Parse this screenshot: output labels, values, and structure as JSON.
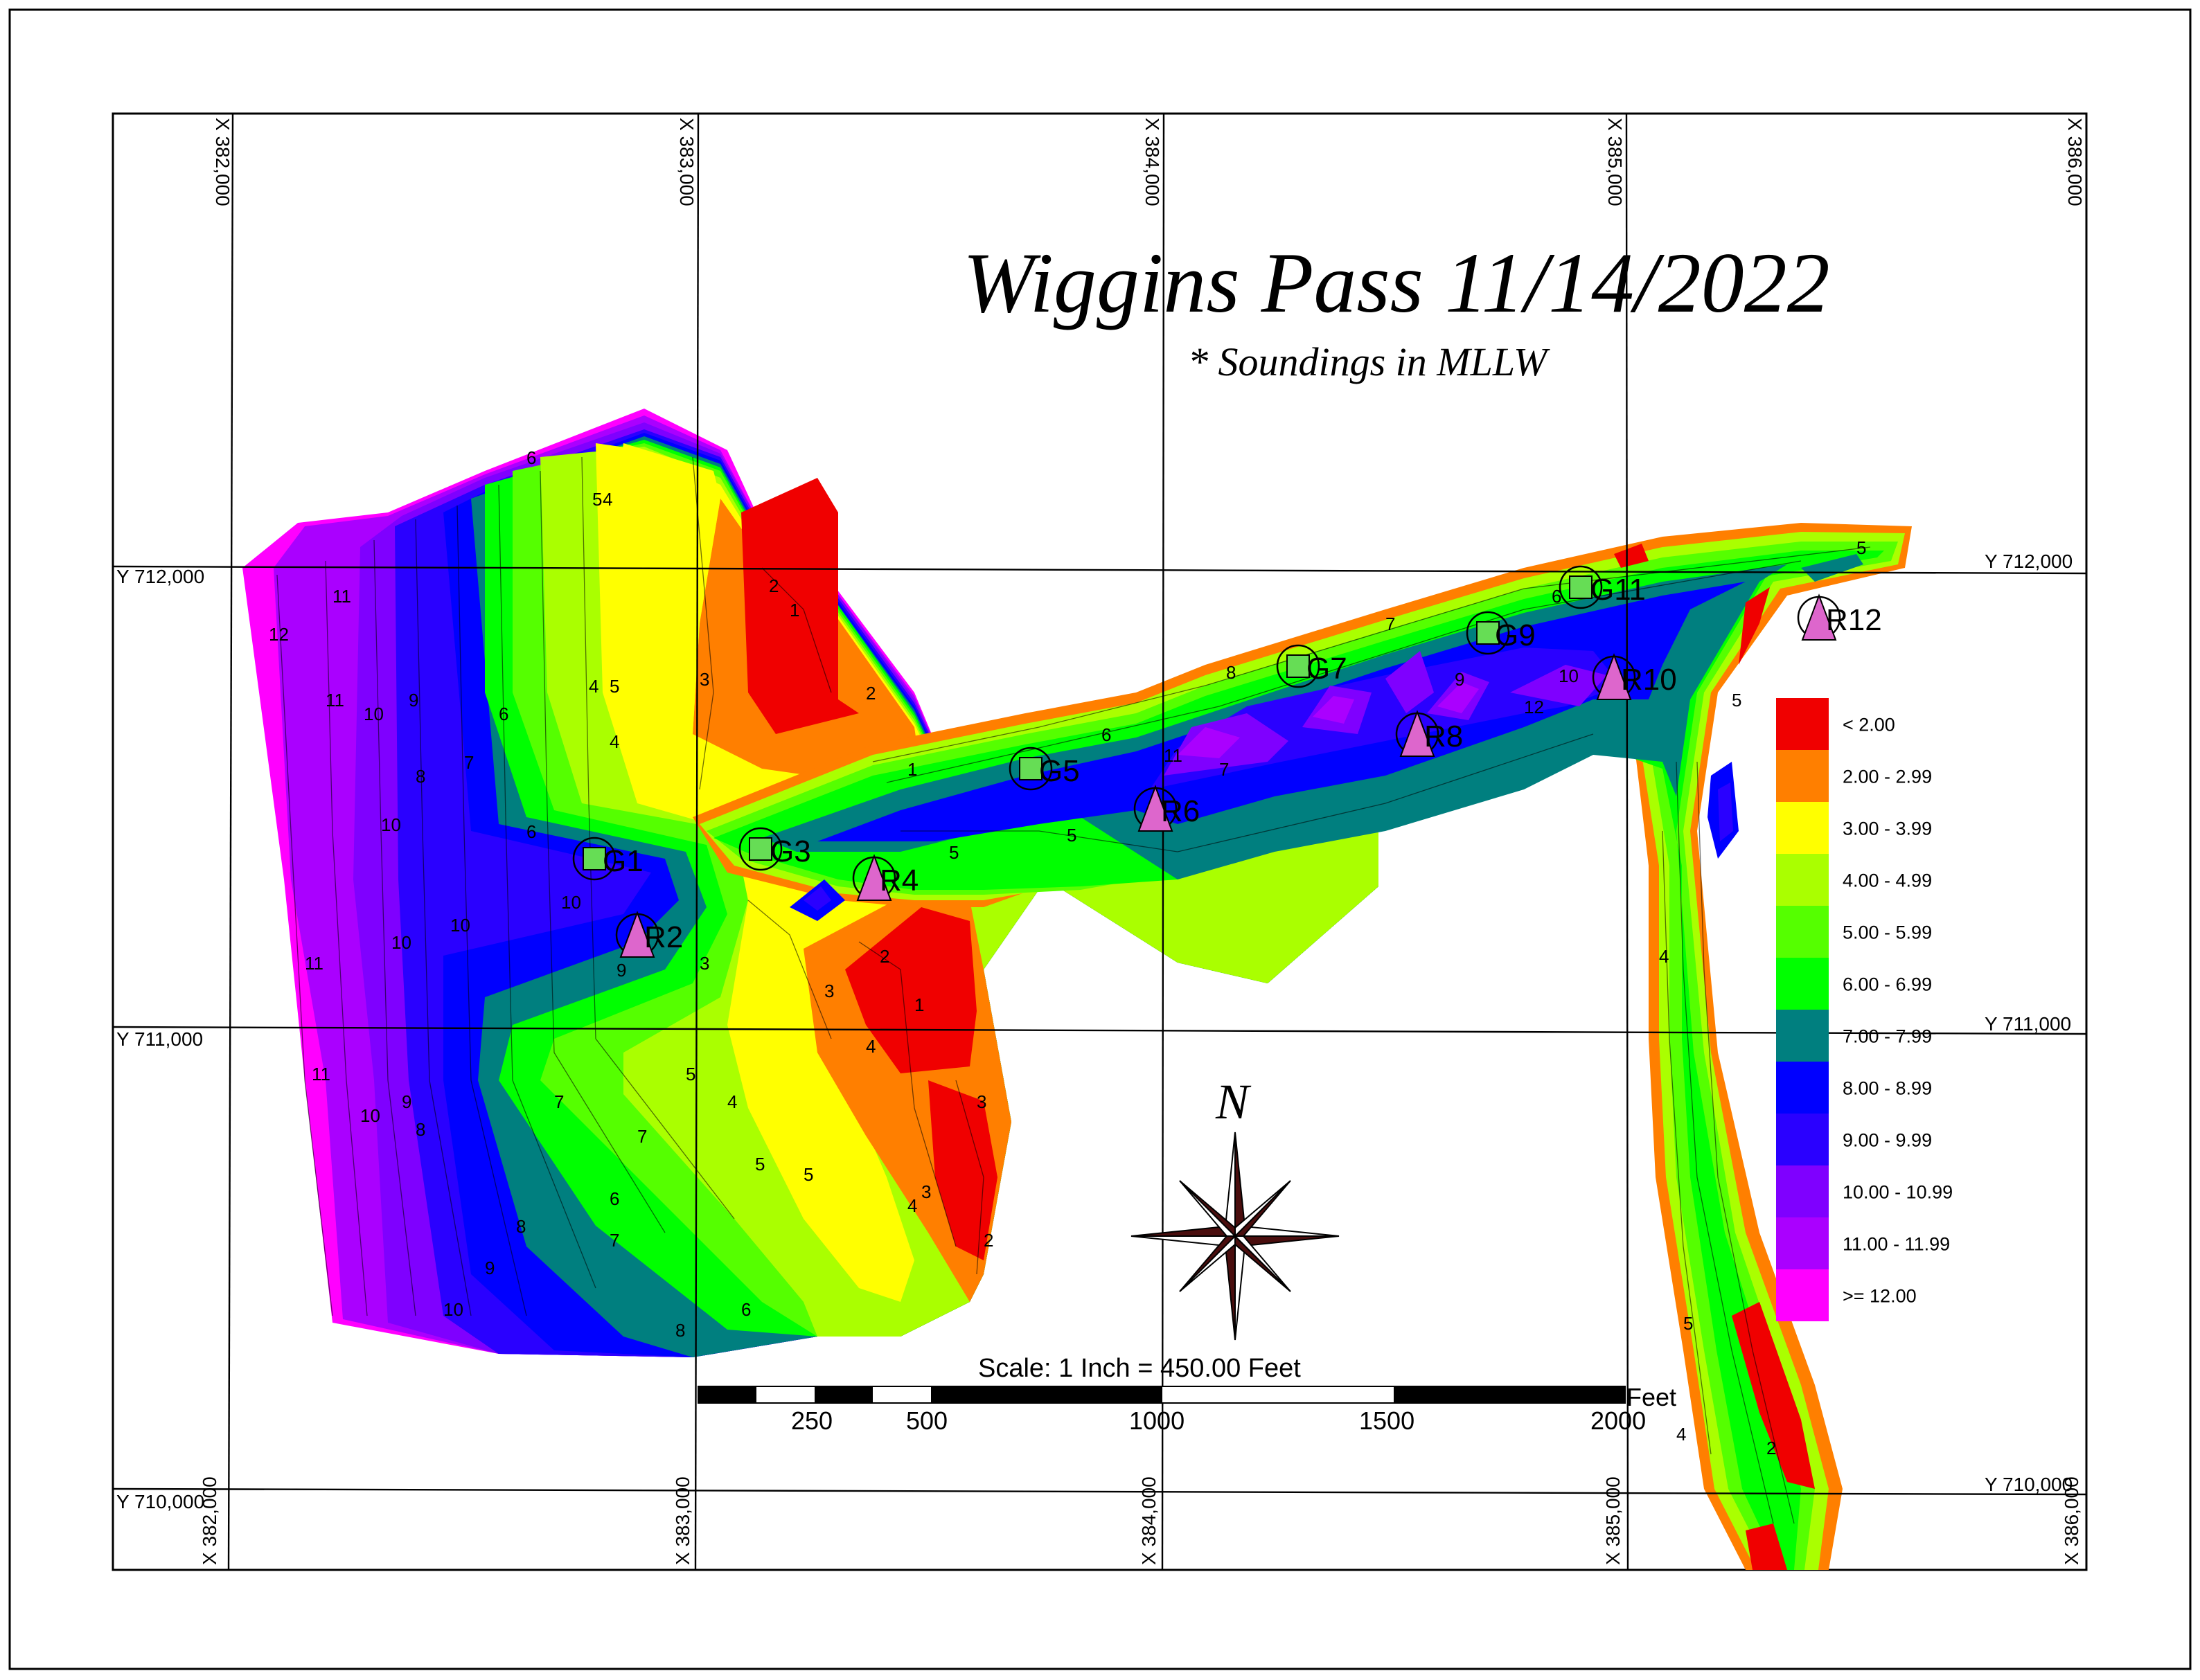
{
  "map": {
    "title": "Wiggins Pass 11/14/2022",
    "subtitle": "* Soundings in MLLW",
    "north": "N",
    "scale_caption": "Scale: 1 Inch = 450.00 Feet",
    "scale_unit": "Feet",
    "scale_ticks": [
      "250",
      "500",
      "1000",
      "1500",
      "2000"
    ],
    "x_grid": [
      "X 382,000",
      "X 383,000",
      "X 384,000",
      "X 385,000",
      "X 386,000"
    ],
    "y_grid": [
      "Y 712,000",
      "Y 711,000",
      "Y 710,000"
    ]
  },
  "legend": [
    {
      "label": "< 2.00",
      "color": "#f00000"
    },
    {
      "label": "2.00 - 2.99",
      "color": "#ff7f00"
    },
    {
      "label": "3.00 - 3.99",
      "color": "#ffff00"
    },
    {
      "label": "4.00 - 4.99",
      "color": "#aaff00"
    },
    {
      "label": "5.00 - 5.99",
      "color": "#55ff00"
    },
    {
      "label": "6.00 - 6.99",
      "color": "#00ff00"
    },
    {
      "label": "7.00 - 7.99",
      "color": "#007f7f"
    },
    {
      "label": "8.00 - 8.99",
      "color": "#0000ff"
    },
    {
      "label": "9.00 - 9.99",
      "color": "#2a00ff"
    },
    {
      "label": "10.00 - 10.99",
      "color": "#7f00ff"
    },
    {
      "label": "11.00 - 11.99",
      "color": "#aa00ff"
    },
    {
      "label": ">= 12.00",
      "color": "#ff00ff"
    }
  ],
  "markers": {
    "greens": [
      "G1",
      "G3",
      "G5",
      "G7",
      "G9",
      "G11"
    ],
    "reds": [
      "R2",
      "R4",
      "R6",
      "R8",
      "R10",
      "R12"
    ]
  },
  "contour_labels": [
    "12",
    "11",
    "10",
    "9",
    "8",
    "7",
    "6",
    "5",
    "4",
    "3",
    "2",
    "1"
  ]
}
